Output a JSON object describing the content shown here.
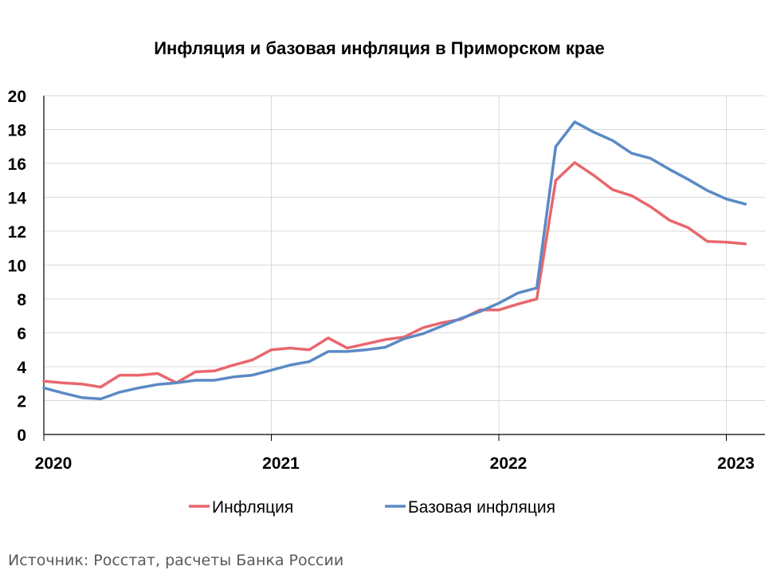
{
  "chart_data": {
    "type": "line",
    "title": "Инфляция и базовая инфляция в Приморском крае",
    "xlabel": "",
    "ylabel": "",
    "ylim": [
      0,
      20
    ],
    "yticks": [
      "0",
      "2",
      "4",
      "6",
      "8",
      "10",
      "12",
      "14",
      "16",
      "18",
      "20"
    ],
    "xticks": [
      "2020",
      "2021",
      "2022",
      "2023"
    ],
    "x_start": "2020-01",
    "x_end": "2023-01",
    "grid": true,
    "legend_position": "bottom",
    "series": [
      {
        "name": "Инфляция",
        "color": "#e8676d",
        "values": [
          3.15,
          3.05,
          2.98,
          2.8,
          3.5,
          3.5,
          3.6,
          3.05,
          3.7,
          3.75,
          4.1,
          4.4,
          5.0,
          5.1,
          5.0,
          5.7,
          5.1,
          5.35,
          5.6,
          5.75,
          6.3,
          6.6,
          6.8,
          7.35,
          7.35,
          7.7,
          8.0,
          15.0,
          16.05,
          15.3,
          14.45,
          14.1,
          13.45,
          12.65,
          12.2,
          11.4,
          11.35,
          11.25
        ]
      },
      {
        "name": "Базовая инфляция",
        "color": "#5b8ac4",
        "values": [
          2.75,
          2.45,
          2.18,
          2.1,
          2.5,
          2.75,
          2.95,
          3.05,
          3.2,
          3.2,
          3.4,
          3.5,
          3.8,
          4.1,
          4.3,
          4.9,
          4.9,
          5.0,
          5.15,
          5.65,
          5.95,
          6.4,
          6.85,
          7.25,
          7.75,
          8.35,
          8.65,
          17.0,
          18.45,
          17.85,
          17.35,
          16.6,
          16.3,
          15.65,
          15.05,
          14.4,
          13.9,
          13.6
        ]
      }
    ]
  },
  "source": "Источник: Росстат, расчеты Банка России"
}
